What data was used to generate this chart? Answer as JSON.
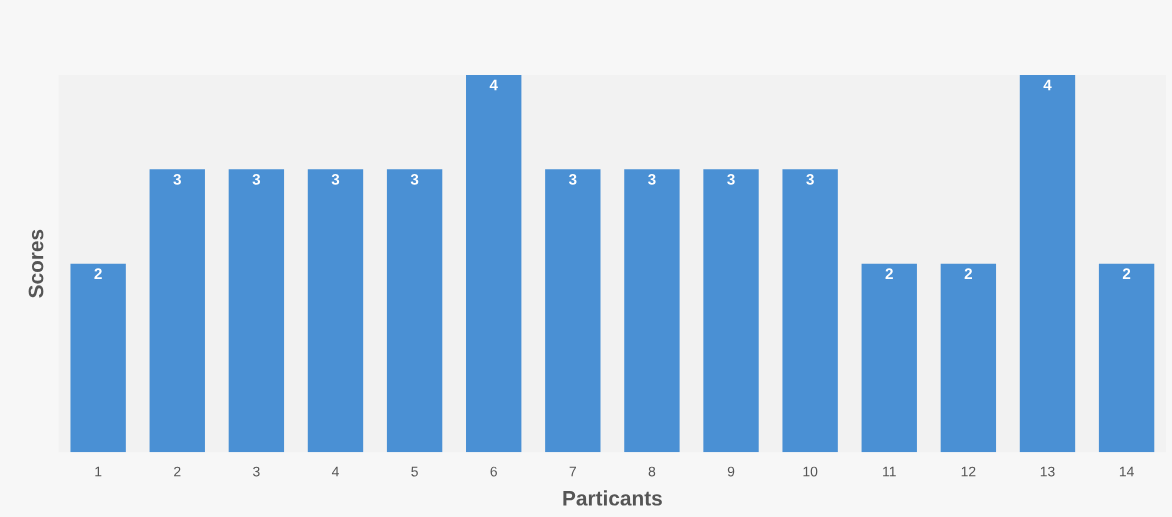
{
  "chart_data": {
    "type": "bar",
    "xlabel": "Particants",
    "ylabel": "Scores",
    "categories": [
      "1",
      "2",
      "3",
      "4",
      "5",
      "6",
      "7",
      "8",
      "9",
      "10",
      "11",
      "12",
      "13",
      "14"
    ],
    "values": [
      2,
      3,
      3,
      3,
      3,
      4,
      3,
      3,
      3,
      3,
      2,
      2,
      4,
      2
    ],
    "color": "#4a90d4",
    "data_labels": true,
    "tick_labels": "x",
    "grid": false
  }
}
